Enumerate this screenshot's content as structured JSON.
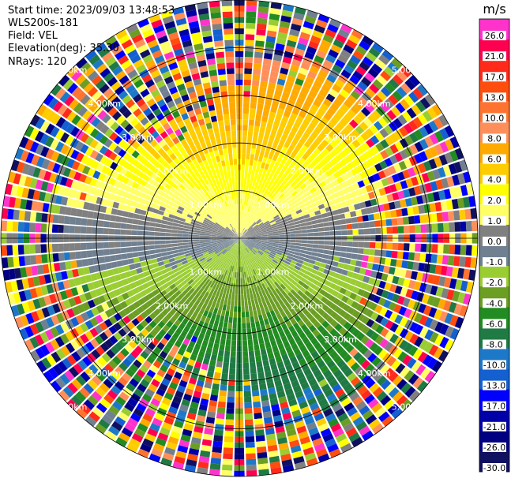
{
  "header": {
    "start_time": "Start time: 2023/09/03 13:48:53",
    "instrument": "WLS200s-181",
    "field": "Field: VEL",
    "elevation": "Elevation(deg): 35.30",
    "nrays": "NRays: 120"
  },
  "chart_data": {
    "type": "heatmap",
    "projection": "polar (PPI scan)",
    "field": "VEL",
    "nrays": 120,
    "range_rings_km": [
      1.0,
      2.0,
      3.0,
      4.0,
      5.0
    ],
    "range_ring_labels": [
      "1.00km",
      "2.00km",
      "3.00km",
      "4.00km",
      "5.00km"
    ],
    "max_range_km": 5.0,
    "colorbar": {
      "unit": "m/s",
      "min": -30.0,
      "max": 30.0,
      "ticks": [
        "26.0",
        "21.0",
        "17.0",
        "13.0",
        "10.0",
        "8.0",
        "6.0",
        "4.0",
        "2.0",
        "1.0",
        "0.0",
        "-1.0",
        "-2.0",
        "-4.0",
        "-6.0",
        "-8.0",
        "-10.0",
        "-13.0",
        "-17.0",
        "-21.0",
        "-26.0",
        "-30.0"
      ],
      "colors": [
        "#ff33cc",
        "#ff0050",
        "#ff2a1a",
        "#ff4d0d",
        "#ff7330",
        "#ff8f5a",
        "#ffaa00",
        "#ffcc00",
        "#ffff00",
        "#ffff66",
        "#808080",
        "#708090",
        "#9acd32",
        "#6b9e23",
        "#228b22",
        "#1f7a44",
        "#1e78c8",
        "#1560d0",
        "#0000ff",
        "#0000a8",
        "#000080",
        "#101060"
      ]
    },
    "velocity_pattern": {
      "near_range_km": [
        0,
        2.5
      ],
      "north_half": "positive (receding) 4 to 17 m/s, rising with range",
      "south_half": "negative (approaching) -2 to -13 m/s",
      "east_west_axis": "near 0 m/s",
      "far_range": "noisy, full scale"
    }
  }
}
